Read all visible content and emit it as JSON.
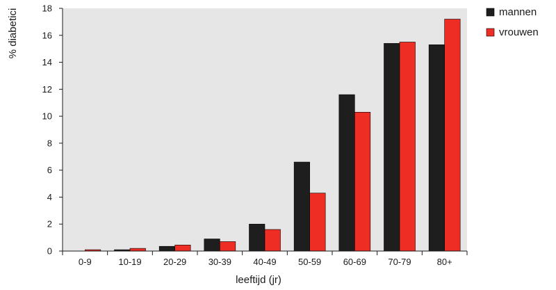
{
  "chart_data": {
    "type": "bar",
    "title": "",
    "xlabel": "leeftijd (jr)",
    "ylabel": "% diabetici",
    "ylim": [
      0,
      18
    ],
    "yticks": [
      0,
      2,
      4,
      6,
      8,
      10,
      12,
      14,
      16,
      18
    ],
    "categories": [
      "0-9",
      "10-19",
      "20-29",
      "30-39",
      "40-49",
      "50-59",
      "60-69",
      "70-79",
      "80+"
    ],
    "series": [
      {
        "name": "mannen",
        "color": "#1e1e1e",
        "values": [
          0.0,
          0.1,
          0.35,
          0.9,
          2.0,
          6.6,
          11.6,
          15.4,
          15.3
        ]
      },
      {
        "name": "vrouwen",
        "color": "#ee2e24",
        "values": [
          0.1,
          0.2,
          0.45,
          0.7,
          1.6,
          4.3,
          10.3,
          15.5,
          17.2
        ]
      }
    ],
    "background": "#e6e6e6",
    "grid": false,
    "legend_position": "top-right"
  }
}
